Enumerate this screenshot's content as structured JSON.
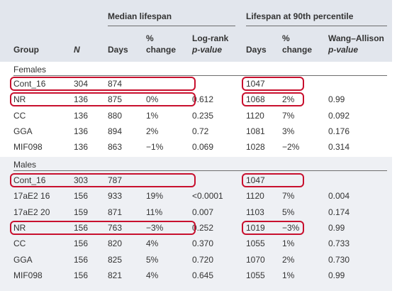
{
  "header": {
    "group_median": "Median lifespan",
    "group_90th": "Lifespan at 90th percentile",
    "col_group": "Group",
    "col_n": "N",
    "col_days": "Days",
    "col_change_1": "%",
    "col_change_2": "change",
    "col_logrank_1": "Log-rank",
    "col_logrank_2": "p-value",
    "col_days2": "Days",
    "col_change2_1": "%",
    "col_change2_2": "change",
    "col_wang_1": "Wang–Allison",
    "col_wang_2": "p-value"
  },
  "sections": {
    "females": "Females",
    "males": "Males"
  },
  "females_rows": [
    {
      "group": "Cont_16",
      "n": "304",
      "days": "874",
      "pct": "",
      "logrank": "",
      "days90": "1047",
      "pct90": "",
      "wang": "",
      "highlight": true
    },
    {
      "group": "NR",
      "n": "136",
      "days": "875",
      "pct": "0%",
      "logrank": "0.612",
      "days90": "1068",
      "pct90": "2%",
      "wang": "0.99",
      "highlight": true
    },
    {
      "group": "CC",
      "n": "136",
      "days": "880",
      "pct": "1%",
      "logrank": "0.235",
      "days90": "1120",
      "pct90": "7%",
      "wang": "0.092",
      "highlight": false
    },
    {
      "group": "GGA",
      "n": "136",
      "days": "894",
      "pct": "2%",
      "logrank": "0.72",
      "days90": "1081",
      "pct90": "3%",
      "wang": "0.176",
      "highlight": false
    },
    {
      "group": "MIF098",
      "n": "136",
      "days": "863",
      "pct": "−1%",
      "logrank": "0.069",
      "days90": "1028",
      "pct90": "−2%",
      "wang": "0.314",
      "highlight": false
    }
  ],
  "males_rows": [
    {
      "group": "Cont_16",
      "n": "303",
      "days": "787",
      "pct": "",
      "logrank": "",
      "days90": "1047",
      "pct90": "",
      "wang": "",
      "highlight": true
    },
    {
      "group": "17aE2 16",
      "n": "156",
      "days": "933",
      "pct": "19%",
      "logrank": "<0.0001",
      "days90": "1120",
      "pct90": "7%",
      "wang": "0.004",
      "highlight": false
    },
    {
      "group": "17aE2 20",
      "n": "159",
      "days": "871",
      "pct": "11%",
      "logrank": "0.007",
      "days90": "1103",
      "pct90": "5%",
      "wang": "0.174",
      "highlight": false
    },
    {
      "group": "NR",
      "n": "156",
      "days": "763",
      "pct": "−3%",
      "logrank": "0.252",
      "days90": "1019",
      "pct90": "−3%",
      "wang": "0.99",
      "highlight": true
    },
    {
      "group": "CC",
      "n": "156",
      "days": "820",
      "pct": "4%",
      "logrank": "0.370",
      "days90": "1055",
      "pct90": "1%",
      "wang": "0.733",
      "highlight": false
    },
    {
      "group": "GGA",
      "n": "156",
      "days": "825",
      "pct": "5%",
      "logrank": "0.720",
      "days90": "1070",
      "pct90": "2%",
      "wang": "0.730",
      "highlight": false
    },
    {
      "group": "MIF098",
      "n": "156",
      "days": "821",
      "pct": "4%",
      "logrank": "0.645",
      "days90": "1055",
      "pct90": "1%",
      "wang": "0.99",
      "highlight": false
    }
  ],
  "colors": {
    "header_bg": "#e2e6ed",
    "males_bg": "#eef0f4",
    "highlight_border": "#c8102e",
    "rule": "#6e6e6e"
  }
}
